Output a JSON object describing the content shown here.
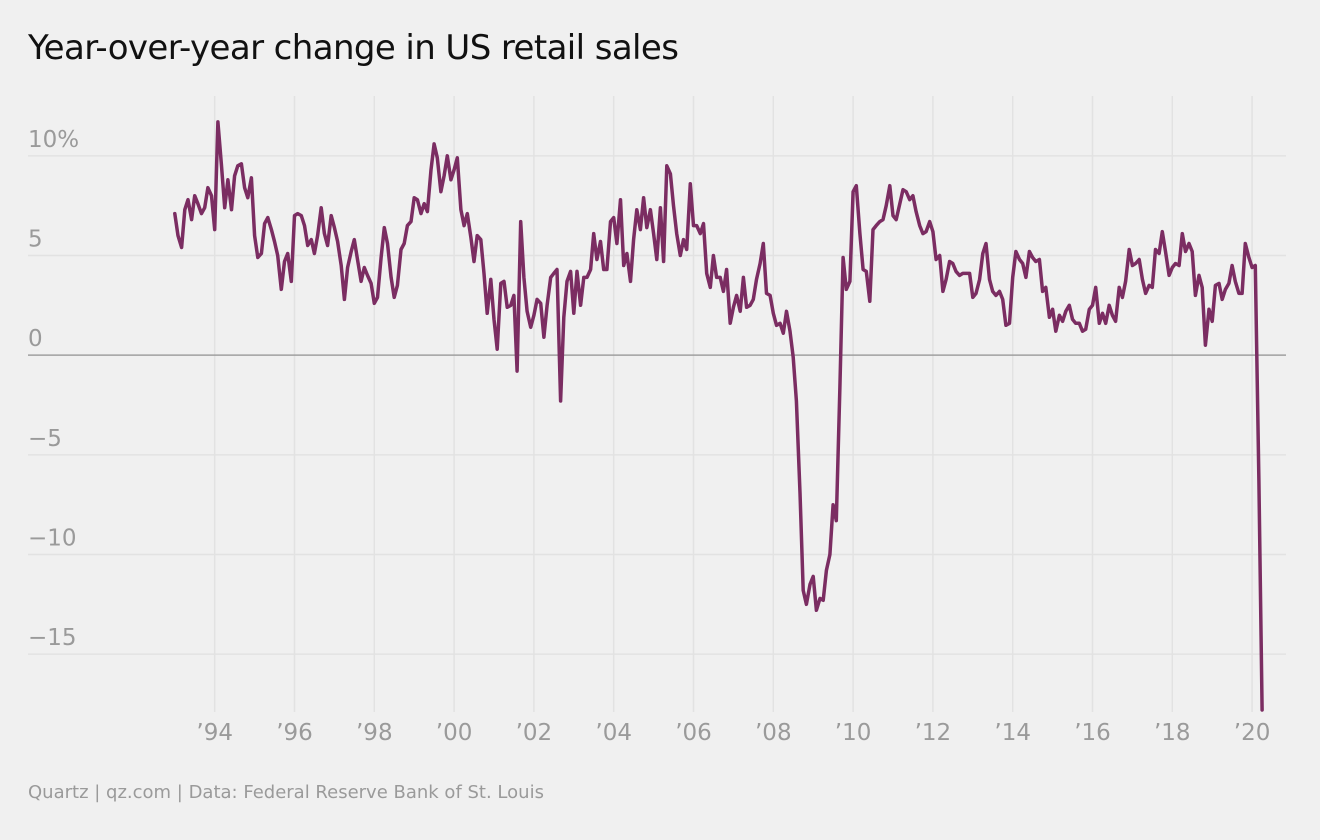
{
  "title": "Year-over-year change in US retail sales",
  "source": "Quartz | qz.com | Data: Federal Reserve Bank of St. Louis",
  "colors": {
    "background": "#f0f0f0",
    "line": "#7b2d62",
    "gridline": "#e2e2e2",
    "zero_line": "#a0a0a0",
    "tick_label": "#9a9a9a",
    "title": "#111111"
  },
  "chart_data": {
    "type": "line",
    "title": "Year-over-year change in US retail sales",
    "xlabel": "",
    "ylabel": "",
    "grid": true,
    "xlim": [
      1991.0,
      2020.85
    ],
    "ylim": [
      -17.5,
      12.5
    ],
    "y_ticks": [
      {
        "value": 10,
        "label": "10%"
      },
      {
        "value": 5,
        "label": "5"
      },
      {
        "value": 0,
        "label": "0"
      },
      {
        "value": -5,
        "label": "−5"
      },
      {
        "value": -10,
        "label": "−10"
      },
      {
        "value": -15,
        "label": "−15"
      }
    ],
    "x_ticks": [
      {
        "value": 1994,
        "label": "’94"
      },
      {
        "value": 1996,
        "label": "’96"
      },
      {
        "value": 1998,
        "label": "’98"
      },
      {
        "value": 2000,
        "label": "’00"
      },
      {
        "value": 2002,
        "label": "’02"
      },
      {
        "value": 2004,
        "label": "’04"
      },
      {
        "value": 2006,
        "label": "’06"
      },
      {
        "value": 2008,
        "label": "’08"
      },
      {
        "value": 2010,
        "label": "’10"
      },
      {
        "value": 2012,
        "label": "’12"
      },
      {
        "value": 2014,
        "label": "’14"
      },
      {
        "value": 2016,
        "label": "’16"
      },
      {
        "value": 2018,
        "label": "’18"
      },
      {
        "value": 2020,
        "label": "’20"
      }
    ],
    "series": [
      {
        "name": "",
        "x": [
          1993.0,
          1993.08,
          1993.17,
          1993.25,
          1993.33,
          1993.42,
          1993.5,
          1993.58,
          1993.67,
          1993.75,
          1993.83,
          1993.92,
          1994.0,
          1994.08,
          1994.17,
          1994.25,
          1994.33,
          1994.42,
          1994.5,
          1994.58,
          1994.67,
          1994.75,
          1994.83,
          1994.92,
          1995.0,
          1995.08,
          1995.17,
          1995.25,
          1995.33,
          1995.42,
          1995.5,
          1995.58,
          1995.67,
          1995.75,
          1995.83,
          1995.92,
          1996.0,
          1996.08,
          1996.17,
          1996.25,
          1996.33,
          1996.42,
          1996.5,
          1996.58,
          1996.67,
          1996.75,
          1996.83,
          1996.92,
          1997.0,
          1997.08,
          1997.17,
          1997.25,
          1997.33,
          1997.42,
          1997.5,
          1997.58,
          1997.67,
          1997.75,
          1997.83,
          1997.92,
          1998.0,
          1998.08,
          1998.17,
          1998.25,
          1998.33,
          1998.42,
          1998.5,
          1998.58,
          1998.67,
          1998.75,
          1998.83,
          1998.92,
          1999.0,
          1999.08,
          1999.17,
          1999.25,
          1999.33,
          1999.42,
          1999.5,
          1999.58,
          1999.67,
          1999.75,
          1999.83,
          1999.92,
          2000.0,
          2000.08,
          2000.17,
          2000.25,
          2000.33,
          2000.42,
          2000.5,
          2000.58,
          2000.67,
          2000.75,
          2000.83,
          2000.92,
          2001.0,
          2001.08,
          2001.17,
          2001.25,
          2001.33,
          2001.42,
          2001.5,
          2001.58,
          2001.67,
          2001.75,
          2001.83,
          2001.92,
          2002.0,
          2002.08,
          2002.17,
          2002.25,
          2002.33,
          2002.42,
          2002.5,
          2002.58,
          2002.67,
          2002.75,
          2002.83,
          2002.92,
          2003.0,
          2003.08,
          2003.17,
          2003.25,
          2003.33,
          2003.42,
          2003.5,
          2003.58,
          2003.67,
          2003.75,
          2003.83,
          2003.92,
          2004.0,
          2004.08,
          2004.17,
          2004.25,
          2004.33,
          2004.42,
          2004.5,
          2004.58,
          2004.67,
          2004.75,
          2004.83,
          2004.92,
          2005.0,
          2005.08,
          2005.17,
          2005.25,
          2005.33,
          2005.42,
          2005.5,
          2005.58,
          2005.67,
          2005.75,
          2005.83,
          2005.92,
          2006.0,
          2006.08,
          2006.17,
          2006.25,
          2006.33,
          2006.42,
          2006.5,
          2006.58,
          2006.67,
          2006.75,
          2006.83,
          2006.92,
          2007.0,
          2007.08,
          2007.17,
          2007.25,
          2007.33,
          2007.42,
          2007.5,
          2007.58,
          2007.67,
          2007.75,
          2007.83,
          2007.92,
          2008.0,
          2008.08,
          2008.17,
          2008.25,
          2008.33,
          2008.42,
          2008.5,
          2008.58,
          2008.67,
          2008.75,
          2008.83,
          2008.92,
          2009.0,
          2009.08,
          2009.17,
          2009.25,
          2009.33,
          2009.42,
          2009.5,
          2009.58,
          2009.67,
          2009.75,
          2009.83,
          2009.92,
          2010.0,
          2010.08,
          2010.17,
          2010.25,
          2010.33,
          2010.42,
          2010.5,
          2010.58,
          2010.67,
          2010.75,
          2010.83,
          2010.92,
          2011.0,
          2011.08,
          2011.17,
          2011.25,
          2011.33,
          2011.42,
          2011.5,
          2011.58,
          2011.67,
          2011.75,
          2011.83,
          2011.92,
          2012.0,
          2012.08,
          2012.17,
          2012.25,
          2012.33,
          2012.42,
          2012.5,
          2012.58,
          2012.67,
          2012.75,
          2012.83,
          2012.92,
          2013.0,
          2013.08,
          2013.17,
          2013.25,
          2013.33,
          2013.42,
          2013.5,
          2013.58,
          2013.67,
          2013.75,
          2013.83,
          2013.92,
          2014.0,
          2014.08,
          2014.17,
          2014.25,
          2014.33,
          2014.42,
          2014.5,
          2014.58,
          2014.67,
          2014.75,
          2014.83,
          2014.92,
          2015.0,
          2015.08,
          2015.17,
          2015.25,
          2015.33,
          2015.42,
          2015.5,
          2015.58,
          2015.67,
          2015.75,
          2015.83,
          2015.92,
          2016.0,
          2016.08,
          2016.17,
          2016.25,
          2016.33,
          2016.42,
          2016.5,
          2016.58,
          2016.67,
          2016.75,
          2016.83,
          2016.92,
          2017.0,
          2017.08,
          2017.17,
          2017.25,
          2017.33,
          2017.42,
          2017.5,
          2017.58,
          2017.67,
          2017.75,
          2017.83,
          2017.92,
          2018.0,
          2018.08,
          2018.17,
          2018.25,
          2018.33,
          2018.42,
          2018.5,
          2018.58,
          2018.67,
          2018.75,
          2018.83,
          2018.92,
          2019.0,
          2019.08,
          2019.17,
          2019.25,
          2019.33,
          2019.42,
          2019.5,
          2019.58,
          2019.67,
          2019.75,
          2019.83,
          2019.92,
          2020.0,
          2020.08,
          2020.17,
          2020.25
        ],
        "y": [
          7.1,
          6.0,
          5.4,
          7.3,
          7.8,
          6.8,
          8.0,
          7.6,
          7.1,
          7.4,
          8.4,
          8.0,
          6.3,
          11.7,
          9.5,
          7.4,
          8.8,
          7.3,
          9.0,
          9.5,
          9.6,
          8.4,
          7.9,
          8.9,
          6.0,
          4.9,
          5.1,
          6.6,
          6.9,
          6.3,
          5.7,
          5.0,
          3.3,
          4.7,
          5.1,
          3.7,
          7.0,
          7.1,
          7.0,
          6.5,
          5.5,
          5.8,
          5.1,
          6.0,
          7.4,
          6.1,
          5.5,
          7.0,
          6.4,
          5.7,
          4.5,
          2.8,
          4.4,
          5.2,
          5.8,
          4.8,
          3.7,
          4.4,
          4.0,
          3.6,
          2.6,
          2.9,
          4.9,
          6.4,
          5.6,
          3.9,
          2.9,
          3.5,
          5.3,
          5.6,
          6.5,
          6.7,
          7.9,
          7.8,
          7.1,
          7.6,
          7.2,
          9.3,
          10.6,
          9.9,
          8.2,
          9.0,
          10.0,
          8.8,
          9.3,
          9.9,
          7.3,
          6.5,
          7.1,
          5.9,
          4.7,
          6.0,
          5.8,
          4.1,
          2.1,
          3.8,
          1.8,
          0.3,
          3.6,
          3.7,
          2.4,
          2.5,
          3.0,
          -0.8,
          6.7,
          3.9,
          2.2,
          1.4,
          2.0,
          2.8,
          2.6,
          0.9,
          2.5,
          3.9,
          4.1,
          4.3,
          -2.3,
          1.9,
          3.7,
          4.2,
          2.1,
          4.2,
          2.5,
          3.9,
          3.9,
          4.3,
          6.1,
          4.8,
          5.7,
          4.3,
          4.3,
          6.7,
          6.9,
          5.6,
          7.8,
          4.5,
          5.1,
          3.7,
          5.8,
          7.3,
          6.3,
          7.9,
          6.4,
          7.3,
          6.1,
          4.8,
          7.4,
          4.7,
          9.5,
          9.1,
          7.5,
          6.1,
          5.0,
          5.8,
          5.3,
          8.6,
          6.5,
          6.5,
          6.1,
          6.6,
          4.1,
          3.4,
          5.0,
          3.9,
          3.9,
          3.2,
          4.3,
          1.6,
          2.4,
          3.0,
          2.2,
          3.9,
          2.4,
          2.5,
          2.8,
          3.8,
          4.6,
          5.6,
          3.1,
          3.0,
          2.1,
          1.5,
          1.6,
          1.1,
          2.2,
          1.2,
          -0.1,
          -2.3,
          -6.9,
          -11.8,
          -12.5,
          -11.5,
          -11.1,
          -12.8,
          -12.2,
          -12.3,
          -10.8,
          -10.0,
          -7.5,
          -8.3,
          -1.6,
          4.9,
          3.3,
          3.7,
          8.2,
          8.5,
          6.1,
          4.3,
          4.2,
          2.7,
          6.3,
          6.5,
          6.7,
          6.8,
          7.5,
          8.5,
          7.0,
          6.8,
          7.6,
          8.3,
          8.2,
          7.8,
          8.0,
          7.2,
          6.5,
          6.1,
          6.2,
          6.7,
          6.2,
          4.8,
          5.0,
          3.2,
          3.8,
          4.7,
          4.6,
          4.2,
          4.0,
          4.1,
          4.1,
          4.1,
          2.9,
          3.1,
          3.8,
          5.1,
          5.6,
          3.8,
          3.2,
          3.0,
          3.2,
          2.8,
          1.5,
          1.6,
          3.9,
          5.2,
          4.8,
          4.6,
          3.9,
          5.2,
          4.9,
          4.7,
          4.8,
          3.2,
          3.4,
          1.9,
          2.3,
          1.2,
          2.0,
          1.7,
          2.2,
          2.5,
          1.8,
          1.6,
          1.6,
          1.2,
          1.3,
          2.3,
          2.5,
          3.4,
          1.6,
          2.1,
          1.6,
          2.5,
          2.0,
          1.7,
          3.4,
          2.9,
          3.7,
          5.3,
          4.5,
          4.6,
          4.8,
          3.8,
          3.1,
          3.5,
          3.4,
          5.3,
          5.1,
          6.2,
          5.2,
          4.0,
          4.4,
          4.6,
          4.5,
          6.1,
          5.2,
          5.6,
          5.2,
          3.0,
          4.0,
          3.4,
          0.5,
          2.3,
          1.7,
          3.5,
          3.6,
          2.8,
          3.3,
          3.6,
          4.5,
          3.7,
          3.1,
          3.1,
          5.6,
          4.9,
          4.4,
          4.5,
          -6.3,
          -17.8
        ]
      }
    ]
  }
}
